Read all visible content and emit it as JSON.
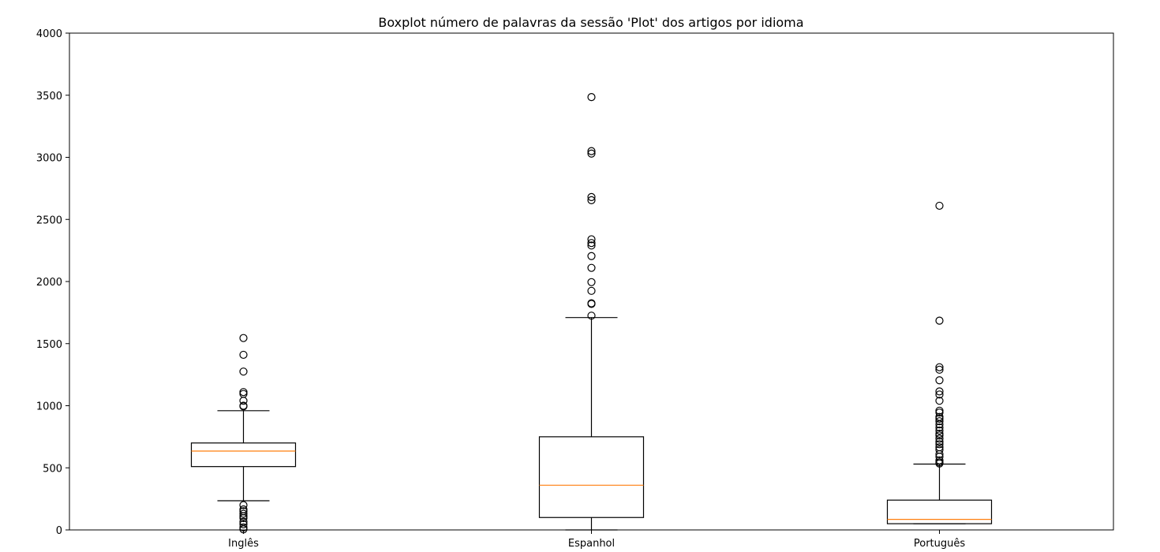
{
  "chart_data": {
    "type": "boxplot",
    "title": "Boxplot número de palavras da sessão 'Plot' dos artigos por idioma",
    "xlabel": "",
    "ylabel": "",
    "ylim": [
      0,
      4000
    ],
    "yticks": [
      0,
      500,
      1000,
      1500,
      2000,
      2500,
      3000,
      3500,
      4000
    ],
    "grid": false,
    "categories": [
      "Inglês",
      "Espanhol",
      "Português"
    ],
    "boxes": [
      {
        "whisker_low": 235,
        "q1": 510,
        "median": 635,
        "q3": 700,
        "whisker_high": 960,
        "outliers": [
          5,
          20,
          45,
          65,
          95,
          110,
          130,
          150,
          165,
          200,
          995,
          1000,
          1040,
          1095,
          1110,
          1275,
          1410,
          1545
        ]
      },
      {
        "whisker_low": 0,
        "q1": 100,
        "median": 360,
        "q3": 750,
        "whisker_high": 1710,
        "outliers": [
          1725,
          1820,
          1825,
          1925,
          1995,
          2110,
          2205,
          2290,
          2310,
          2340,
          2655,
          2680,
          3030,
          3050,
          3485
        ]
      },
      {
        "whisker_low": 50,
        "q1": 50,
        "median": 85,
        "q3": 240,
        "whisker_high": 530,
        "outliers": [
          535,
          545,
          560,
          590,
          610,
          645,
          665,
          690,
          710,
          735,
          760,
          775,
          800,
          825,
          850,
          875,
          895,
          910,
          945,
          960,
          1040,
          1090,
          1115,
          1205,
          1290,
          1310,
          1685,
          2610
        ]
      }
    ],
    "colors": {
      "box": "#000000",
      "median": "#ff7f0e"
    }
  }
}
